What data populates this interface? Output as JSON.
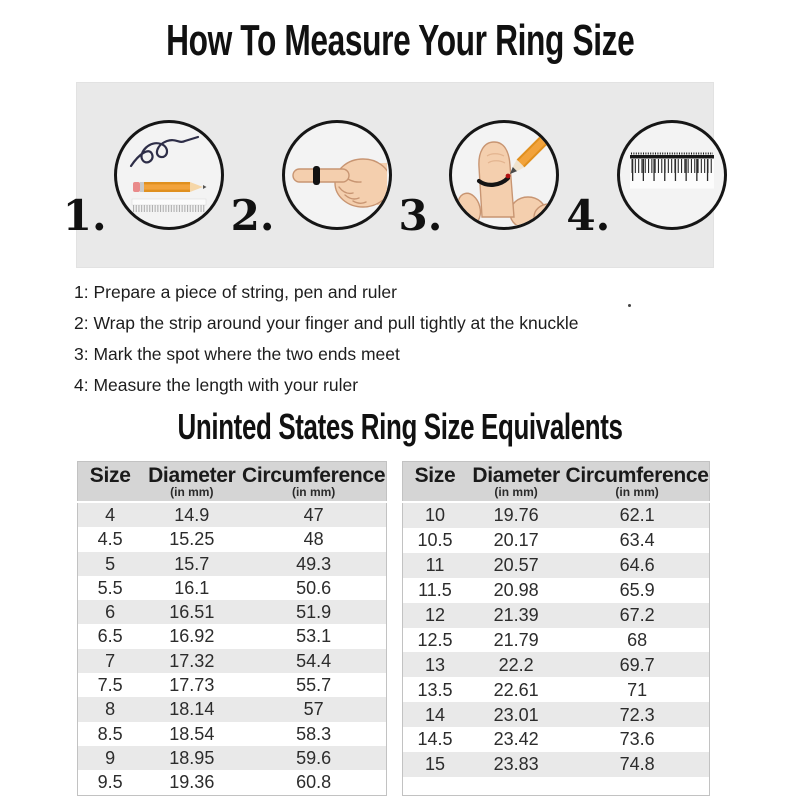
{
  "page": {
    "title": "How To Measure Your Ring Size",
    "table_title": "Uninted States Ring Size Equivalents"
  },
  "steps": [
    {
      "number": "1.",
      "icon": "string-pen-and-ruler-icon"
    },
    {
      "number": "2.",
      "icon": "pointing-finger-with-string-icon"
    },
    {
      "number": "3.",
      "icon": "mark-string-on-finger-icon"
    },
    {
      "number": "4.",
      "icon": "ruler-measure-icon"
    }
  ],
  "instructions": [
    "1: Prepare a piece of string, pen and ruler",
    "2: Wrap the strip around your finger and pull tightly at the knuckle",
    "3: Mark the spot where the two ends meet",
    "4: Measure the length with your ruler"
  ],
  "size_tables": {
    "headers": {
      "size": "Size",
      "diameter": "Diameter",
      "circumference": "Circumference",
      "unit": "(in mm)"
    },
    "left_rows": [
      [
        "4",
        "14.9",
        "47"
      ],
      [
        "4.5",
        "15.25",
        "48"
      ],
      [
        "5",
        "15.7",
        "49.3"
      ],
      [
        "5.5",
        "16.1",
        "50.6"
      ],
      [
        "6",
        "16.51",
        "51.9"
      ],
      [
        "6.5",
        "16.92",
        "53.1"
      ],
      [
        "7",
        "17.32",
        "54.4"
      ],
      [
        "7.5",
        "17.73",
        "55.7"
      ],
      [
        "8",
        "18.14",
        "57"
      ],
      [
        "8.5",
        "18.54",
        "58.3"
      ],
      [
        "9",
        "18.95",
        "59.6"
      ],
      [
        "9.5",
        "19.36",
        "60.8"
      ]
    ],
    "right_rows": [
      [
        "10",
        "19.76",
        "62.1"
      ],
      [
        "10.5",
        "20.17",
        "63.4"
      ],
      [
        "11",
        "20.57",
        "64.6"
      ],
      [
        "11.5",
        "20.98",
        "65.9"
      ],
      [
        "12",
        "21.39",
        "67.2"
      ],
      [
        "12.5",
        "21.79",
        "68"
      ],
      [
        "13",
        "22.2",
        "69.7"
      ],
      [
        "13.5",
        "22.61",
        "71"
      ],
      [
        "14",
        "23.01",
        "72.3"
      ],
      [
        "14.5",
        "23.42",
        "73.6"
      ],
      [
        "15",
        "23.83",
        "74.8"
      ]
    ]
  },
  "colors": {
    "band_background": "#e9e9e9",
    "table_header": "#d5d5d5",
    "row_stripe": "#e9e9e9",
    "pencil_orange": "#f2a33c",
    "string_navy": "#2e2e48",
    "text": "#1d1d1d"
  }
}
